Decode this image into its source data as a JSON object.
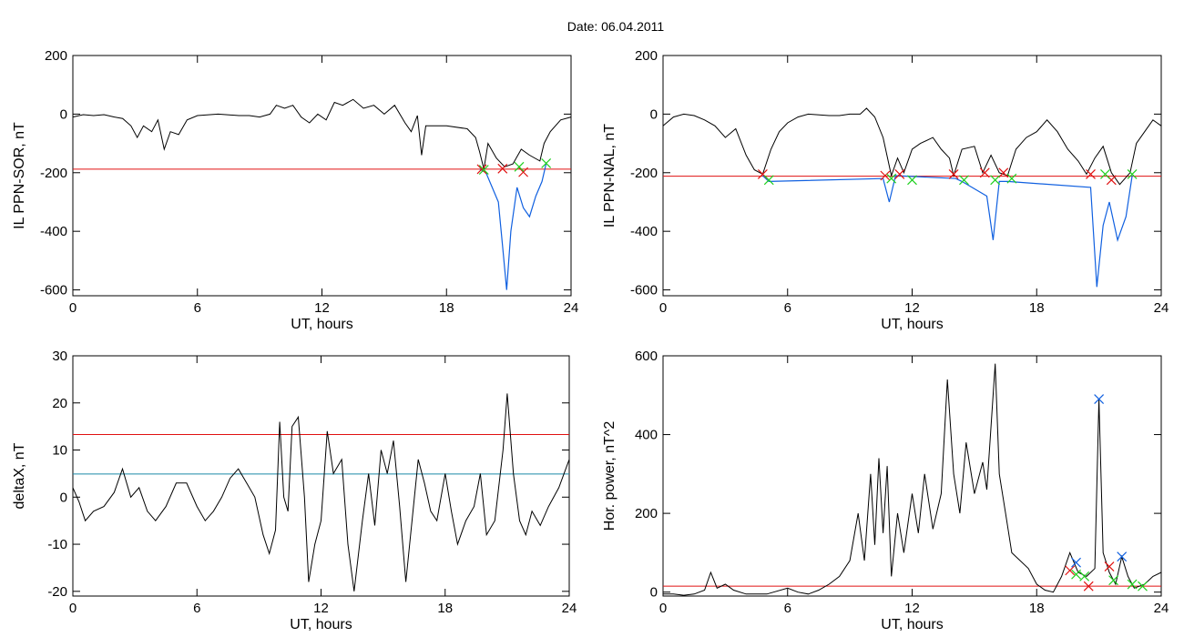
{
  "header": {
    "title": "Date:  06.04.2011"
  },
  "colors": {
    "red": "#e01010",
    "blue": "#1060e0",
    "green": "#20d020",
    "teal": "#1a8aa8",
    "black": "#000000"
  },
  "chart_data": [
    {
      "type": "line",
      "ylabel": "IL PPN-SOR, nT",
      "xlabel": "UT, hours",
      "xlim": [
        0,
        24
      ],
      "ylim": [
        -620,
        200
      ],
      "xticks": [
        0,
        6,
        12,
        18,
        24
      ],
      "yticks": [
        -600,
        -400,
        -200,
        0,
        200
      ],
      "threshold": {
        "value": -188,
        "color": "#e01010"
      },
      "series_points": [
        [
          0,
          -10
        ],
        [
          0.5,
          -2
        ],
        [
          1,
          -5
        ],
        [
          1.5,
          -2
        ],
        [
          2,
          -10
        ],
        [
          2.4,
          -15
        ],
        [
          2.8,
          -40
        ],
        [
          3.1,
          -80
        ],
        [
          3.4,
          -40
        ],
        [
          3.8,
          -60
        ],
        [
          4.1,
          -20
        ],
        [
          4.4,
          -120
        ],
        [
          4.7,
          -60
        ],
        [
          5.1,
          -70
        ],
        [
          5.5,
          -20
        ],
        [
          6,
          -5
        ],
        [
          7,
          0
        ],
        [
          8,
          -5
        ],
        [
          8.5,
          -5
        ],
        [
          9,
          -10
        ],
        [
          9.5,
          0
        ],
        [
          9.8,
          30
        ],
        [
          10.2,
          20
        ],
        [
          10.6,
          30
        ],
        [
          11,
          -10
        ],
        [
          11.4,
          -30
        ],
        [
          11.8,
          0
        ],
        [
          12.2,
          -20
        ],
        [
          12.6,
          40
        ],
        [
          13,
          30
        ],
        [
          13.5,
          50
        ],
        [
          14,
          20
        ],
        [
          14.5,
          30
        ],
        [
          15,
          0
        ],
        [
          15.5,
          30
        ],
        [
          16,
          -30
        ],
        [
          16.3,
          -60
        ],
        [
          16.6,
          -5
        ],
        [
          16.8,
          -140
        ],
        [
          17,
          -40
        ],
        [
          18,
          -40
        ],
        [
          19,
          -50
        ],
        [
          19.4,
          -80
        ],
        [
          19.6,
          -130
        ],
        [
          19.8,
          -188
        ],
        [
          20,
          -100
        ],
        [
          20.4,
          -150
        ],
        [
          20.8,
          -180
        ],
        [
          21.2,
          -170
        ],
        [
          21.6,
          -120
        ],
        [
          22,
          -140
        ],
        [
          22.5,
          -160
        ],
        [
          22.7,
          -100
        ],
        [
          23,
          -60
        ],
        [
          23.5,
          -20
        ],
        [
          24,
          -10
        ]
      ],
      "highlight_points": [
        [
          19.6,
          -188
        ],
        [
          19.9,
          -200
        ],
        [
          20.2,
          -250
        ],
        [
          20.5,
          -300
        ],
        [
          20.7,
          -450
        ],
        [
          20.9,
          -600
        ],
        [
          21.1,
          -400
        ],
        [
          21.4,
          -250
        ],
        [
          21.7,
          -320
        ],
        [
          22,
          -350
        ],
        [
          22.3,
          -280
        ],
        [
          22.6,
          -230
        ],
        [
          22.8,
          -168
        ]
      ],
      "red_markers": [
        [
          19.7,
          -188
        ],
        [
          20.7,
          -186
        ],
        [
          21.7,
          -198
        ]
      ],
      "green_markers": [
        [
          19.8,
          -190
        ],
        [
          21.5,
          -180
        ],
        [
          22.8,
          -168
        ]
      ]
    },
    {
      "type": "line",
      "ylabel": "IL PPN-NAL, nT",
      "xlabel": "UT, hours",
      "xlim": [
        0,
        24
      ],
      "ylim": [
        -620,
        200
      ],
      "xticks": [
        0,
        6,
        12,
        18,
        24
      ],
      "yticks": [
        -600,
        -400,
        -200,
        0,
        200
      ],
      "threshold": {
        "value": -212,
        "color": "#e01010"
      },
      "series_points": [
        [
          0,
          -40
        ],
        [
          0.5,
          -10
        ],
        [
          1,
          0
        ],
        [
          1.5,
          -5
        ],
        [
          2,
          -20
        ],
        [
          2.5,
          -40
        ],
        [
          3,
          -80
        ],
        [
          3.5,
          -50
        ],
        [
          4,
          -140
        ],
        [
          4.4,
          -190
        ],
        [
          4.8,
          -205
        ],
        [
          5.2,
          -120
        ],
        [
          5.6,
          -60
        ],
        [
          6,
          -30
        ],
        [
          6.5,
          -10
        ],
        [
          7,
          0
        ],
        [
          8,
          -5
        ],
        [
          8.5,
          -5
        ],
        [
          9,
          0
        ],
        [
          9.5,
          0
        ],
        [
          9.8,
          20
        ],
        [
          10.2,
          -10
        ],
        [
          10.6,
          -80
        ],
        [
          11,
          -210
        ],
        [
          11.3,
          -150
        ],
        [
          11.6,
          -200
        ],
        [
          12,
          -120
        ],
        [
          12.4,
          -100
        ],
        [
          13,
          -80
        ],
        [
          13.4,
          -120
        ],
        [
          13.8,
          -150
        ],
        [
          14,
          -210
        ],
        [
          14.4,
          -120
        ],
        [
          15,
          -110
        ],
        [
          15.4,
          -200
        ],
        [
          15.8,
          -140
        ],
        [
          16.2,
          -200
        ],
        [
          16.6,
          -210
        ],
        [
          17,
          -120
        ],
        [
          17.5,
          -80
        ],
        [
          18,
          -60
        ],
        [
          18.5,
          -20
        ],
        [
          19,
          -60
        ],
        [
          19.5,
          -120
        ],
        [
          20,
          -160
        ],
        [
          20.4,
          -205
        ],
        [
          20.8,
          -150
        ],
        [
          21.2,
          -110
        ],
        [
          21.6,
          -200
        ],
        [
          22,
          -240
        ],
        [
          22.5,
          -200
        ],
        [
          22.8,
          -100
        ],
        [
          23.2,
          -60
        ],
        [
          23.6,
          -20
        ],
        [
          24,
          -40
        ]
      ],
      "highlight_points": [
        [
          4.8,
          -210
        ],
        [
          5.1,
          -230
        ],
        [
          10.6,
          -220
        ],
        [
          10.9,
          -300
        ],
        [
          11.2,
          -210
        ],
        [
          14.1,
          -220
        ],
        [
          14.4,
          -230
        ],
        [
          15.6,
          -280
        ],
        [
          15.9,
          -430
        ],
        [
          16.2,
          -230
        ],
        [
          16.6,
          -230
        ],
        [
          20.6,
          -250
        ],
        [
          20.9,
          -590
        ],
        [
          21.2,
          -380
        ],
        [
          21.5,
          -300
        ],
        [
          21.9,
          -430
        ],
        [
          22.3,
          -350
        ],
        [
          22.6,
          -210
        ]
      ],
      "red_markers": [
        [
          4.8,
          -205
        ],
        [
          10.7,
          -210
        ],
        [
          11.4,
          -205
        ],
        [
          14,
          -205
        ],
        [
          15.5,
          -200
        ],
        [
          16.4,
          -200
        ],
        [
          20.6,
          -205
        ],
        [
          21.6,
          -225
        ]
      ],
      "green_markers": [
        [
          5.1,
          -225
        ],
        [
          11,
          -220
        ],
        [
          12,
          -225
        ],
        [
          14.5,
          -225
        ],
        [
          16,
          -225
        ],
        [
          16.8,
          -220
        ],
        [
          21.3,
          -205
        ],
        [
          22.6,
          -205
        ]
      ]
    },
    {
      "type": "line",
      "ylabel": "deltaX, nT",
      "xlabel": "UT, hours",
      "xlim": [
        0,
        24
      ],
      "ylim": [
        -21,
        30
      ],
      "xticks": [
        0,
        6,
        12,
        18,
        24
      ],
      "yticks": [
        -20,
        -10,
        0,
        10,
        20,
        30
      ],
      "thresholds": [
        {
          "value": 13.3,
          "color": "#e01010"
        },
        {
          "value": 4.9,
          "color": "#1a8aa8"
        }
      ],
      "series_points": [
        [
          0,
          2
        ],
        [
          0.3,
          -1
        ],
        [
          0.6,
          -5
        ],
        [
          1,
          -3
        ],
        [
          1.5,
          -2
        ],
        [
          2,
          1
        ],
        [
          2.4,
          6
        ],
        [
          2.8,
          0
        ],
        [
          3.2,
          2
        ],
        [
          3.6,
          -3
        ],
        [
          4,
          -5
        ],
        [
          4.5,
          -2
        ],
        [
          5,
          3
        ],
        [
          5.5,
          3
        ],
        [
          6,
          -2
        ],
        [
          6.4,
          -5
        ],
        [
          6.8,
          -3
        ],
        [
          7.2,
          0
        ],
        [
          7.6,
          4
        ],
        [
          8,
          6
        ],
        [
          8.4,
          3
        ],
        [
          8.8,
          0
        ],
        [
          9.2,
          -8
        ],
        [
          9.5,
          -12
        ],
        [
          9.8,
          -7
        ],
        [
          10,
          16
        ],
        [
          10.2,
          0
        ],
        [
          10.4,
          -3
        ],
        [
          10.6,
          15
        ],
        [
          10.9,
          17
        ],
        [
          11.2,
          0
        ],
        [
          11.4,
          -18
        ],
        [
          11.7,
          -10
        ],
        [
          12,
          -5
        ],
        [
          12.3,
          14
        ],
        [
          12.6,
          5
        ],
        [
          13,
          8
        ],
        [
          13.3,
          -10
        ],
        [
          13.6,
          -20
        ],
        [
          14,
          -5
        ],
        [
          14.3,
          5
        ],
        [
          14.6,
          -6
        ],
        [
          14.9,
          10
        ],
        [
          15.2,
          5
        ],
        [
          15.5,
          12
        ],
        [
          15.8,
          -2
        ],
        [
          16.1,
          -18
        ],
        [
          16.4,
          -5
        ],
        [
          16.7,
          8
        ],
        [
          17,
          3
        ],
        [
          17.3,
          -3
        ],
        [
          17.6,
          -5
        ],
        [
          18,
          5
        ],
        [
          18.3,
          -3
        ],
        [
          18.6,
          -10
        ],
        [
          19,
          -5
        ],
        [
          19.4,
          -2
        ],
        [
          19.7,
          5
        ],
        [
          20,
          -8
        ],
        [
          20.4,
          -5
        ],
        [
          20.8,
          10
        ],
        [
          21,
          22
        ],
        [
          21.3,
          5
        ],
        [
          21.6,
          -5
        ],
        [
          21.9,
          -8
        ],
        [
          22.2,
          -3
        ],
        [
          22.6,
          -6
        ],
        [
          23,
          -2
        ],
        [
          23.5,
          2
        ],
        [
          24,
          8
        ]
      ]
    },
    {
      "type": "line",
      "ylabel": "Hor. power, nT^2",
      "xlabel": "UT, hours",
      "xlim": [
        0,
        24
      ],
      "ylim": [
        -10,
        600
      ],
      "xticks": [
        0,
        6,
        12,
        18,
        24
      ],
      "yticks": [
        0,
        200,
        400,
        600
      ],
      "threshold": {
        "value": 15,
        "color": "#e01010"
      },
      "series_points": [
        [
          0,
          -5
        ],
        [
          0.5,
          -5
        ],
        [
          1,
          -8
        ],
        [
          1.5,
          -5
        ],
        [
          2,
          5
        ],
        [
          2.3,
          50
        ],
        [
          2.6,
          10
        ],
        [
          3,
          20
        ],
        [
          3.4,
          5
        ],
        [
          4,
          -5
        ],
        [
          4.5,
          -5
        ],
        [
          5,
          -5
        ],
        [
          6,
          10
        ],
        [
          6.5,
          0
        ],
        [
          7,
          -5
        ],
        [
          7.5,
          5
        ],
        [
          8,
          20
        ],
        [
          8.5,
          40
        ],
        [
          9,
          80
        ],
        [
          9.4,
          200
        ],
        [
          9.7,
          80
        ],
        [
          10,
          300
        ],
        [
          10.2,
          120
        ],
        [
          10.4,
          340
        ],
        [
          10.6,
          150
        ],
        [
          10.8,
          320
        ],
        [
          11,
          40
        ],
        [
          11.3,
          200
        ],
        [
          11.6,
          100
        ],
        [
          12,
          250
        ],
        [
          12.3,
          150
        ],
        [
          12.6,
          300
        ],
        [
          13,
          160
        ],
        [
          13.4,
          250
        ],
        [
          13.7,
          540
        ],
        [
          14,
          300
        ],
        [
          14.3,
          200
        ],
        [
          14.6,
          380
        ],
        [
          15,
          250
        ],
        [
          15.4,
          330
        ],
        [
          15.6,
          260
        ],
        [
          16,
          580
        ],
        [
          16.2,
          300
        ],
        [
          16.5,
          200
        ],
        [
          16.8,
          100
        ],
        [
          17.2,
          80
        ],
        [
          17.6,
          60
        ],
        [
          18,
          20
        ],
        [
          18.4,
          5
        ],
        [
          18.8,
          0
        ],
        [
          19.2,
          40
        ],
        [
          19.6,
          100
        ],
        [
          20,
          50
        ],
        [
          20.4,
          40
        ],
        [
          20.8,
          60
        ],
        [
          21,
          490
        ],
        [
          21.2,
          100
        ],
        [
          21.5,
          50
        ],
        [
          21.8,
          20
        ],
        [
          22.1,
          90
        ],
        [
          22.4,
          40
        ],
        [
          22.7,
          10
        ],
        [
          23.2,
          20
        ],
        [
          23.6,
          40
        ],
        [
          24,
          50
        ]
      ],
      "red_markers": [
        [
          19.6,
          55
        ],
        [
          20.5,
          15
        ],
        [
          21.5,
          65
        ]
      ],
      "green_markers": [
        [
          19.9,
          45
        ],
        [
          20.3,
          40
        ],
        [
          21.7,
          30
        ],
        [
          22.6,
          20
        ],
        [
          23.1,
          15
        ]
      ],
      "blue_markers": [
        [
          19.9,
          75
        ],
        [
          21,
          490
        ],
        [
          22.1,
          90
        ]
      ]
    }
  ]
}
